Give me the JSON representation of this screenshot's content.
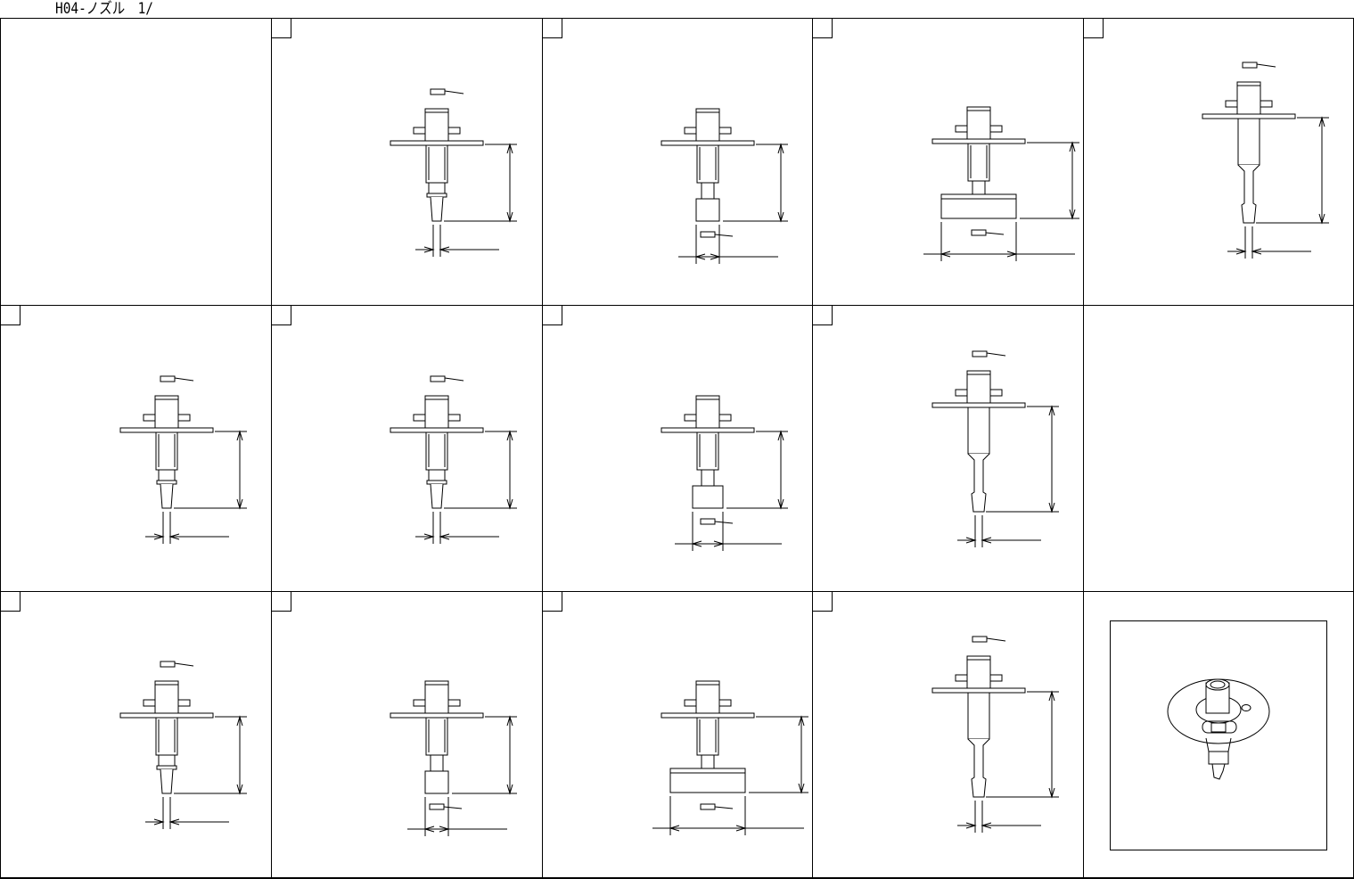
{
  "title": "H04-ノズル　1/",
  "drawings": [
    {
      "icon": "nozzle-tip-drawing"
    },
    {
      "icon": "nozzle-cup-drawing"
    },
    {
      "icon": "nozzle-pad-drawing"
    },
    {
      "icon": "nozzle-long-needle-drawing"
    },
    {
      "icon": "nozzle-fine-tip-drawing"
    },
    {
      "icon": "nozzle-tip-drawing"
    },
    {
      "icon": "nozzle-wide-cup-drawing"
    },
    {
      "icon": "nozzle-long-needle-drawing"
    },
    {
      "icon": "nozzle-fine-tip-drawing"
    },
    {
      "icon": "nozzle-cup-drawing"
    },
    {
      "icon": "nozzle-pad-drawing"
    },
    {
      "icon": "nozzle-long-needle-drawing"
    }
  ],
  "photo": {
    "icon": "nozzle-isometric-illustration"
  }
}
